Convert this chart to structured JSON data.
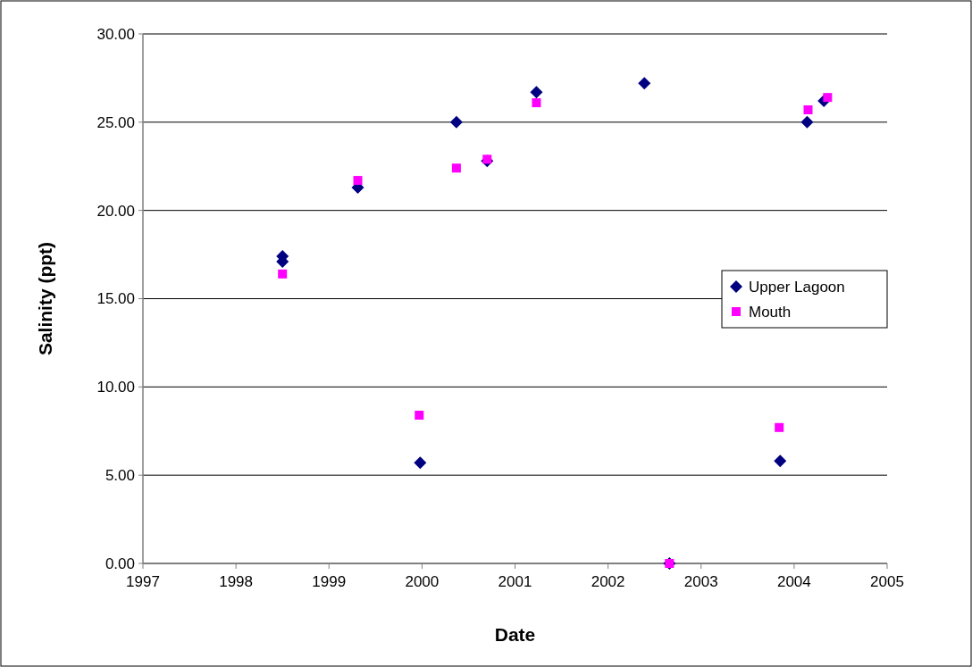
{
  "chart_data": {
    "type": "scatter",
    "xlabel": "Date",
    "ylabel": "Salinity (ppt)",
    "xlim": [
      1997,
      2005
    ],
    "xticks": [
      1997,
      1998,
      1999,
      2000,
      2001,
      2002,
      2003,
      2004,
      2005
    ],
    "ylim": [
      0,
      30
    ],
    "yticks": [
      {
        "value": 0,
        "label": "0.00"
      },
      {
        "value": 5,
        "label": "5.00"
      },
      {
        "value": 10,
        "label": "10.00"
      },
      {
        "value": 15,
        "label": "15.00"
      },
      {
        "value": 20,
        "label": "20.00"
      },
      {
        "value": 25,
        "label": "25.00"
      },
      {
        "value": 30,
        "label": "30.00"
      }
    ],
    "grid": "y",
    "legend": "right",
    "series": [
      {
        "name": "Upper Lagoon",
        "color": "#000080",
        "marker": "diamond",
        "x": [
          1998.5,
          1998.5,
          1999.31,
          1999.98,
          2000.37,
          2000.7,
          2001.23,
          2002.39,
          2002.66,
          2003.85,
          2004.14,
          2004.32
        ],
        "values": [
          17.4,
          17.1,
          21.3,
          5.7,
          25.0,
          22.8,
          26.7,
          27.2,
          0,
          5.8,
          25.0,
          26.2
        ]
      },
      {
        "name": "Mouth",
        "color": "#ff00ff",
        "marker": "square",
        "x": [
          1998.5,
          1999.31,
          1999.97,
          2000.37,
          2000.7,
          2001.23,
          2002.66,
          2003.84,
          2004.15,
          2004.36
        ],
        "values": [
          16.4,
          21.7,
          8.4,
          22.4,
          22.9,
          26.1,
          0,
          7.7,
          25.7,
          26.4
        ]
      }
    ]
  }
}
